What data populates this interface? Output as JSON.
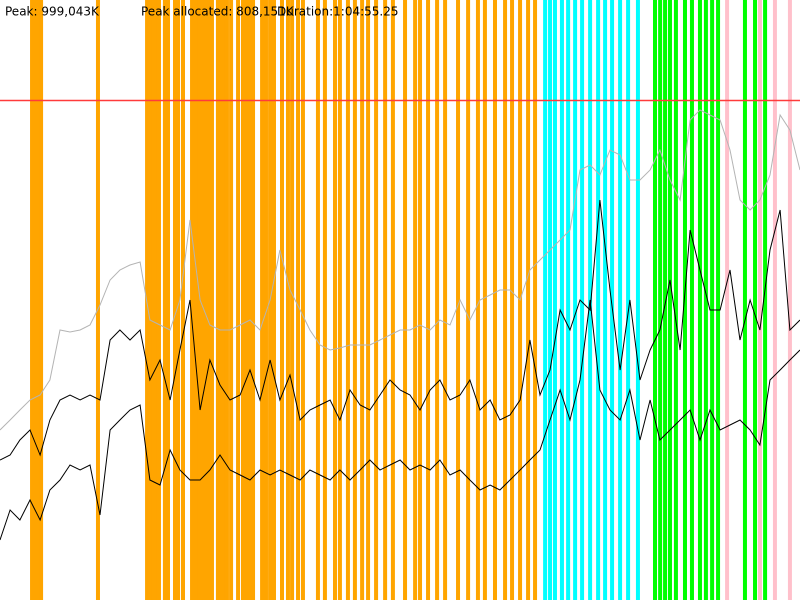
{
  "chart_data": {
    "type": "line",
    "header": [
      "Peak: 999,043K",
      "Peak allocated: 808,151K",
      "Duration:1:04:55.25"
    ],
    "peak": 999043,
    "peak_color": "#ff3b3b",
    "xlim": [
      0,
      3895
    ],
    "ylim": [
      0,
      1200000
    ],
    "x": [
      0,
      49,
      97,
      146,
      195,
      243,
      292,
      341,
      390,
      438,
      487,
      536,
      584,
      633,
      682,
      730,
      779,
      828,
      876,
      925,
      974,
      1022,
      1071,
      1120,
      1169,
      1217,
      1266,
      1315,
      1363,
      1412,
      1461,
      1509,
      1558,
      1607,
      1655,
      1704,
      1753,
      1801,
      1850,
      1899,
      1948,
      1996,
      2045,
      2094,
      2142,
      2191,
      2240,
      2288,
      2337,
      2386,
      2434,
      2483,
      2532,
      2580,
      2629,
      2678,
      2727,
      2775,
      2824,
      2873,
      2921,
      2970,
      3019,
      3067,
      3116,
      3165,
      3213,
      3262,
      3311,
      3360,
      3408,
      3457,
      3506,
      3554,
      3603,
      3652,
      3700,
      3749,
      3798,
      3846,
      3895
    ],
    "series": [
      {
        "color": "#b4b4b4",
        "values": [
          340000,
          360000,
          380000,
          400000,
          410000,
          440000,
          540000,
          536000,
          540000,
          550000,
          590000,
          640000,
          660000,
          670000,
          676000,
          560000,
          550000,
          540000,
          600000,
          760000,
          600000,
          550000,
          540000,
          540000,
          550000,
          560000,
          540000,
          600000,
          700000,
          620000,
          580000,
          540000,
          510000,
          500000,
          504000,
          510000,
          510000,
          510000,
          520000,
          530000,
          540000,
          540000,
          550000,
          540000,
          560000,
          550000,
          600000,
          560000,
          600000,
          610000,
          620000,
          620000,
          600000,
          660000,
          680000,
          700000,
          720000,
          740000,
          860000,
          870000,
          850000,
          900000,
          890000,
          840000,
          840000,
          860000,
          900000,
          840000,
          800000,
          960000,
          980000,
          970000,
          960000,
          900000,
          800000,
          780000,
          800000,
          850000,
          970000,
          940000,
          860000
        ]
      },
      {
        "color": "#000000",
        "values": [
          280000,
          290000,
          320000,
          340000,
          290000,
          360000,
          400000,
          410000,
          400000,
          410000,
          400000,
          520000,
          540000,
          520000,
          540000,
          440000,
          480000,
          400000,
          500000,
          600000,
          380000,
          480000,
          430000,
          400000,
          410000,
          460000,
          400000,
          480000,
          400000,
          450000,
          360000,
          380000,
          390000,
          400000,
          360000,
          420000,
          390000,
          380000,
          410000,
          440000,
          420000,
          410000,
          380000,
          420000,
          440000,
          400000,
          410000,
          440000,
          380000,
          400000,
          360000,
          370000,
          400000,
          520000,
          410000,
          460000,
          580000,
          540000,
          600000,
          580000,
          800000,
          620000,
          460000,
          600000,
          440000,
          500000,
          540000,
          640000,
          500000,
          740000,
          660000,
          580000,
          580000,
          660000,
          520000,
          600000,
          540000,
          700000,
          780000,
          540000,
          560000
        ]
      },
      {
        "color": "#000000",
        "values": [
          120000,
          180000,
          160000,
          200000,
          160000,
          220000,
          240000,
          270000,
          260000,
          270000,
          170000,
          340000,
          360000,
          380000,
          390000,
          240000,
          230000,
          300000,
          260000,
          240000,
          240000,
          260000,
          290000,
          260000,
          250000,
          240000,
          260000,
          250000,
          260000,
          250000,
          240000,
          260000,
          250000,
          240000,
          260000,
          240000,
          260000,
          280000,
          260000,
          270000,
          280000,
          260000,
          270000,
          260000,
          280000,
          250000,
          260000,
          240000,
          220000,
          230000,
          220000,
          240000,
          260000,
          280000,
          300000,
          360000,
          420000,
          360000,
          440000,
          600000,
          420000,
          380000,
          360000,
          420000,
          320000,
          400000,
          320000,
          340000,
          360000,
          380000,
          320000,
          380000,
          340000,
          350000,
          360000,
          340000,
          310000,
          440000,
          460000,
          480000,
          500000
        ]
      }
    ],
    "events": [
      {
        "color": "#ffa500",
        "x": [
          156,
          170,
          185,
          200,
          477,
          716,
          730,
          745,
          760,
          774,
          803,
          818,
          852,
          867,
          891,
          935,
          954,
          969,
          988,
          1003,
          1018,
          1032,
          1061,
          1076,
          1091,
          1105,
          1125,
          1159,
          1183,
          1198,
          1217,
          1232,
          1276,
          1295,
          1315,
          1334,
          1373,
          1402,
          1422,
          1451,
          1475,
          1548,
          1582,
          1631,
          1655,
          1694,
          1728,
          1763,
          1792,
          1831,
          1875,
          1913,
          1972,
          2021,
          2045,
          2084,
          2128,
          2167,
          2230,
          2279,
          2327,
          2361,
          2410,
          2459,
          2493,
          2532,
          2571,
          2605
        ]
      },
      {
        "color": "#00ffff",
        "x": [
          2654,
          2678,
          2702,
          2736,
          2766,
          2800,
          2834,
          2873,
          2912,
          2946,
          2980,
          3019,
          3058,
          3106
        ]
      },
      {
        "color": "#00ff00",
        "x": [
          3189,
          3214,
          3238,
          3262,
          3291,
          3335,
          3369,
          3408,
          3437,
          3467,
          3496,
          3627,
          3676,
          3725
        ]
      },
      {
        "color": "#ffc0cb",
        "x": [
          3540,
          3700,
          3773,
          3846
        ]
      }
    ]
  }
}
